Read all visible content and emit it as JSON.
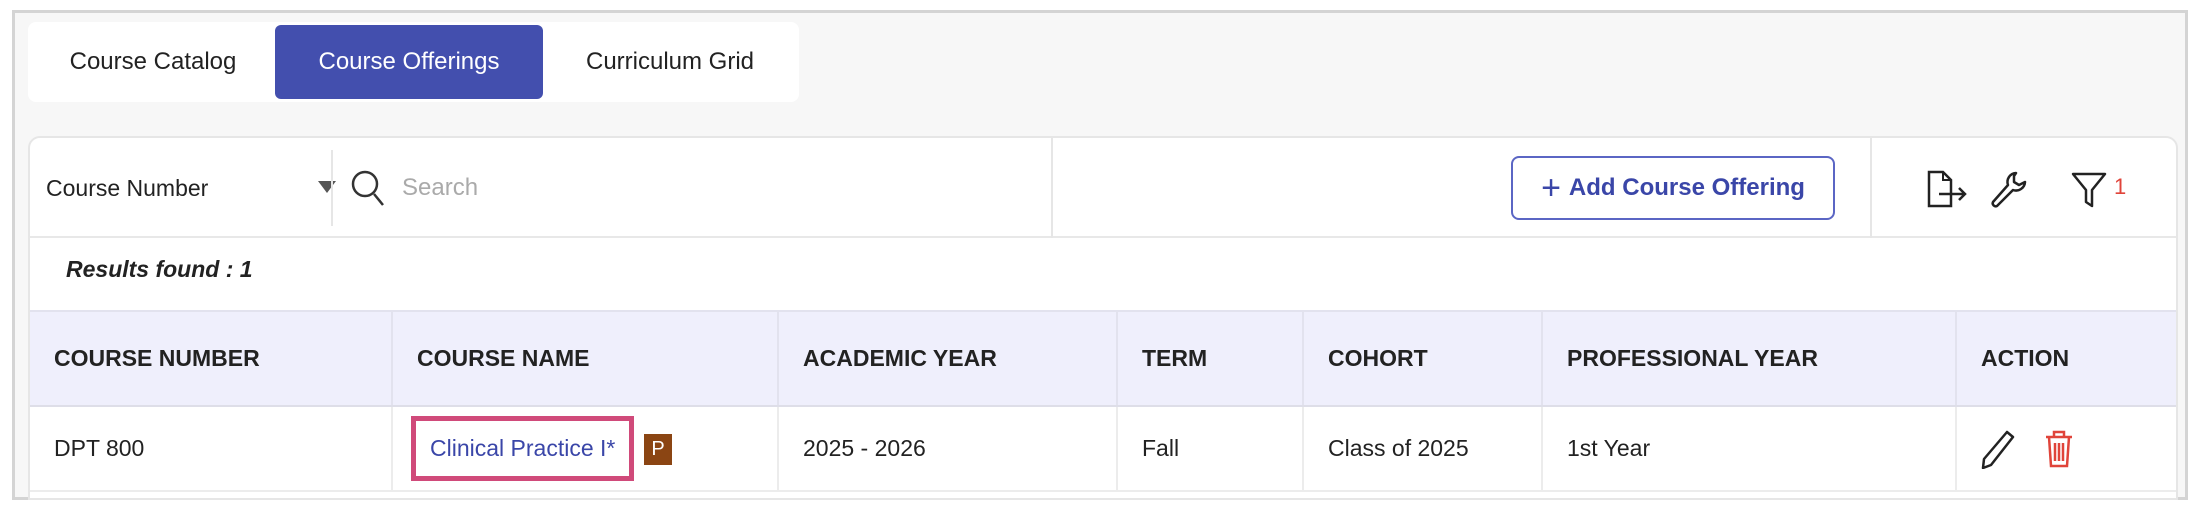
{
  "tabs": [
    {
      "label": "Course Catalog",
      "active": false
    },
    {
      "label": "Course Offerings",
      "active": true
    },
    {
      "label": "Curriculum Grid",
      "active": false
    }
  ],
  "toolbar": {
    "filter_field": "Course Number",
    "search_placeholder": "Search",
    "add_label": "Add Course Offering",
    "filter_count": "1",
    "icons": [
      "export-icon",
      "wrench-icon",
      "filter-icon"
    ]
  },
  "results": "Results found : 1",
  "table": {
    "headers": [
      "COURSE NUMBER",
      "COURSE NAME",
      "ACADEMIC YEAR",
      "TERM",
      "COHORT",
      "PROFESSIONAL YEAR",
      "ACTION"
    ],
    "rows": [
      {
        "course_number": "DPT 800",
        "course_name": "Clinical Practice I*",
        "badge": "P",
        "academic_year": "2025 - 2026",
        "term": "Fall",
        "cohort": "Class of 2025",
        "professional_year": "1st Year"
      }
    ]
  },
  "colors": {
    "accent": "#434fae",
    "highlight": "#d04a7a",
    "badge": "#8b4513",
    "delete": "#e0443a",
    "header_bg": "#efeffc"
  }
}
